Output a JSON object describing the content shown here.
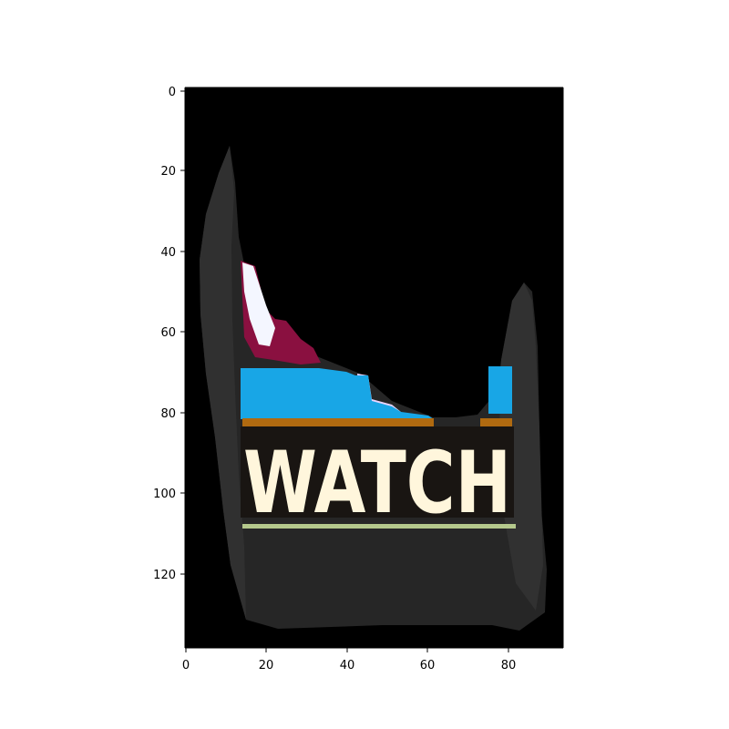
{
  "image": {
    "caption_text": "WATCH",
    "background_color": "#000000",
    "subject_color": "#262626",
    "band_color": "#18a6e6",
    "stripe_color": "#b06a10",
    "underline_color": "#b4c88c",
    "text_color": "#fff6dc"
  },
  "axes": {
    "x_ticks": [
      "0",
      "20",
      "40",
      "60",
      "80"
    ],
    "y_ticks": [
      "0",
      "20",
      "40",
      "60",
      "80",
      "100",
      "120"
    ]
  }
}
